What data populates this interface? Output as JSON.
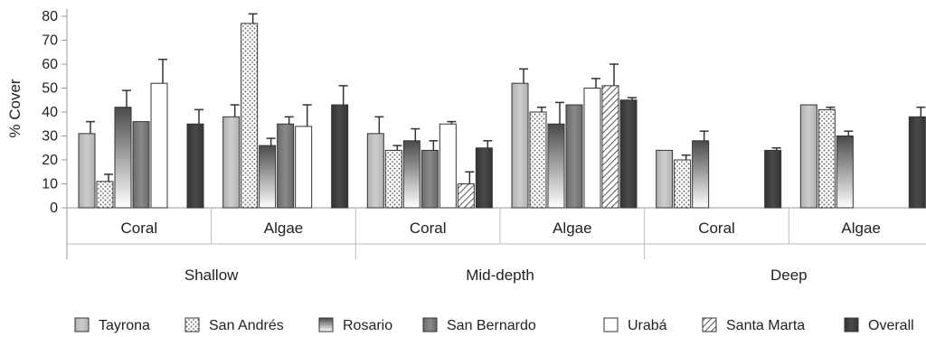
{
  "chart_data": {
    "type": "bar",
    "ylabel": "% Cover",
    "ylim": [
      0,
      80
    ],
    "yticks": [
      0,
      10,
      20,
      30,
      40,
      50,
      60,
      70,
      80
    ],
    "depths": [
      "Shallow",
      "Mid-depth",
      "Deep"
    ],
    "groups": [
      {
        "depth": "Shallow",
        "category": "Coral"
      },
      {
        "depth": "Shallow",
        "category": "Algae"
      },
      {
        "depth": "Mid-depth",
        "category": "Coral"
      },
      {
        "depth": "Mid-depth",
        "category": "Algae"
      },
      {
        "depth": "Deep",
        "category": "Coral"
      },
      {
        "depth": "Deep",
        "category": "Algae"
      }
    ],
    "series": [
      {
        "name": "Tayrona",
        "values": [
          31,
          38,
          31,
          52,
          24,
          43
        ],
        "errors": [
          5,
          5,
          7,
          6,
          0,
          0
        ]
      },
      {
        "name": "San Andrés",
        "values": [
          11,
          77,
          24,
          40,
          20,
          41
        ],
        "errors": [
          3,
          4,
          2,
          2,
          2,
          1
        ]
      },
      {
        "name": "Rosario",
        "values": [
          42,
          26,
          28,
          35,
          28,
          30
        ],
        "errors": [
          7,
          3,
          5,
          9,
          4,
          2
        ]
      },
      {
        "name": "San Bernardo",
        "values": [
          36,
          35,
          24,
          43,
          null,
          null
        ],
        "errors": [
          0,
          3,
          4,
          0,
          0,
          0
        ]
      },
      {
        "name": "Urabá",
        "values": [
          52,
          34,
          35,
          50,
          null,
          null
        ],
        "errors": [
          10,
          9,
          1,
          4,
          0,
          0
        ]
      },
      {
        "name": "Santa Marta",
        "values": [
          null,
          null,
          10,
          51,
          null,
          null
        ],
        "errors": [
          0,
          0,
          5,
          9,
          0,
          0
        ]
      },
      {
        "name": "Overall",
        "values": [
          35,
          43,
          25,
          45,
          24,
          38
        ],
        "errors": [
          6,
          8,
          3,
          1,
          1,
          4
        ]
      }
    ],
    "legend_position": "bottom",
    "grid": false
  },
  "colors": {
    "Tayrona": "#bdbdbd",
    "San Andrés": "dotted",
    "Rosario": "gradient",
    "San Bernardo": "#7a7a7a",
    "Urabá": "#ffffff",
    "Santa Marta": "hatched",
    "Overall": "#3c3c3c"
  }
}
